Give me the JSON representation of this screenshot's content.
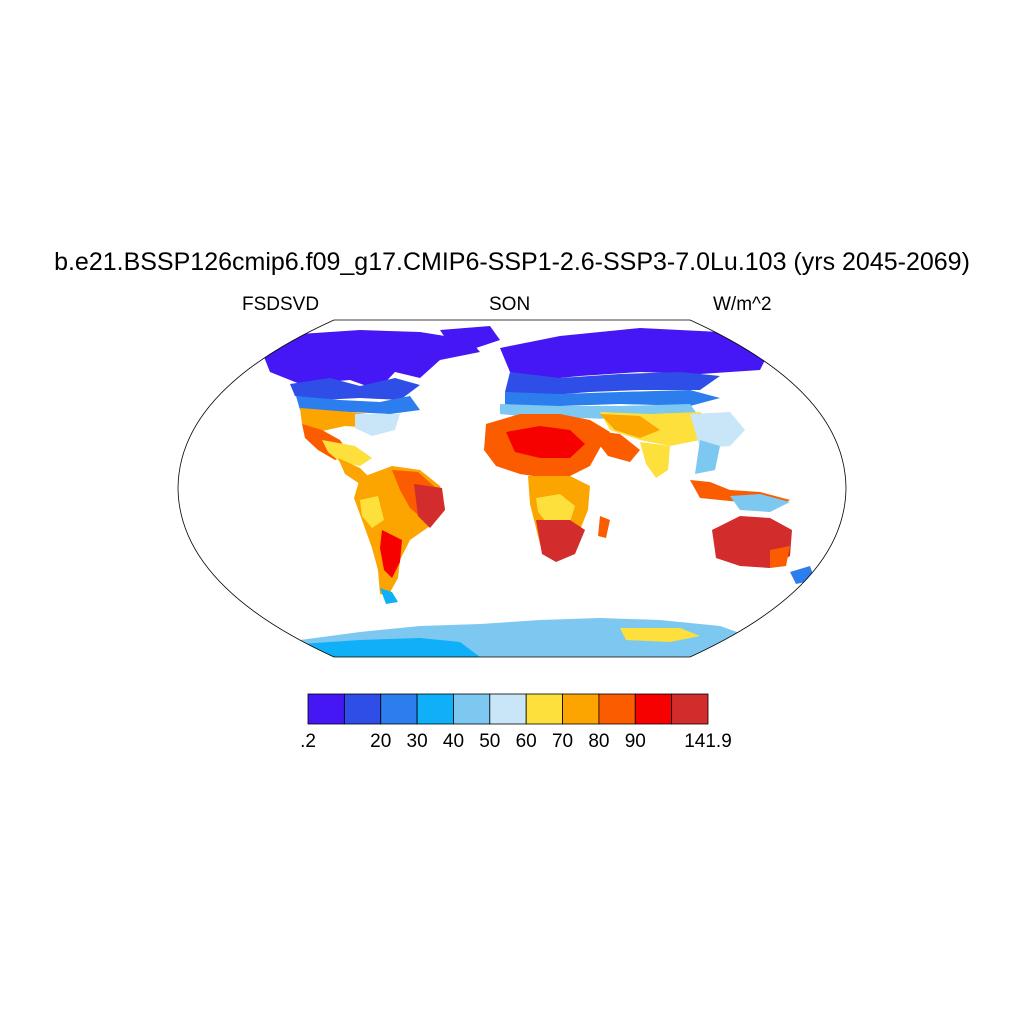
{
  "title": "b.e21.BSSP126cmip6.f09_g17.CMIP6-SSP1-2.6-SSP3-7.0Lu.103 (yrs 2045-2069)",
  "left_label": "FSDSVD",
  "center_label": "SON",
  "right_label": "W/m^2",
  "colorbar": {
    "colors": [
      "#4617f5",
      "#2f4ee8",
      "#2c7ded",
      "#0fb0f8",
      "#7dc8f0",
      "#c8e6f8",
      "#fde03c",
      "#fca400",
      "#fc5c00",
      "#f60000",
      "#d22c2c"
    ],
    "tick_labels": [
      ".2",
      "20",
      "30",
      "40",
      "50",
      "60",
      "70",
      "80",
      "90",
      "141.9"
    ]
  }
}
